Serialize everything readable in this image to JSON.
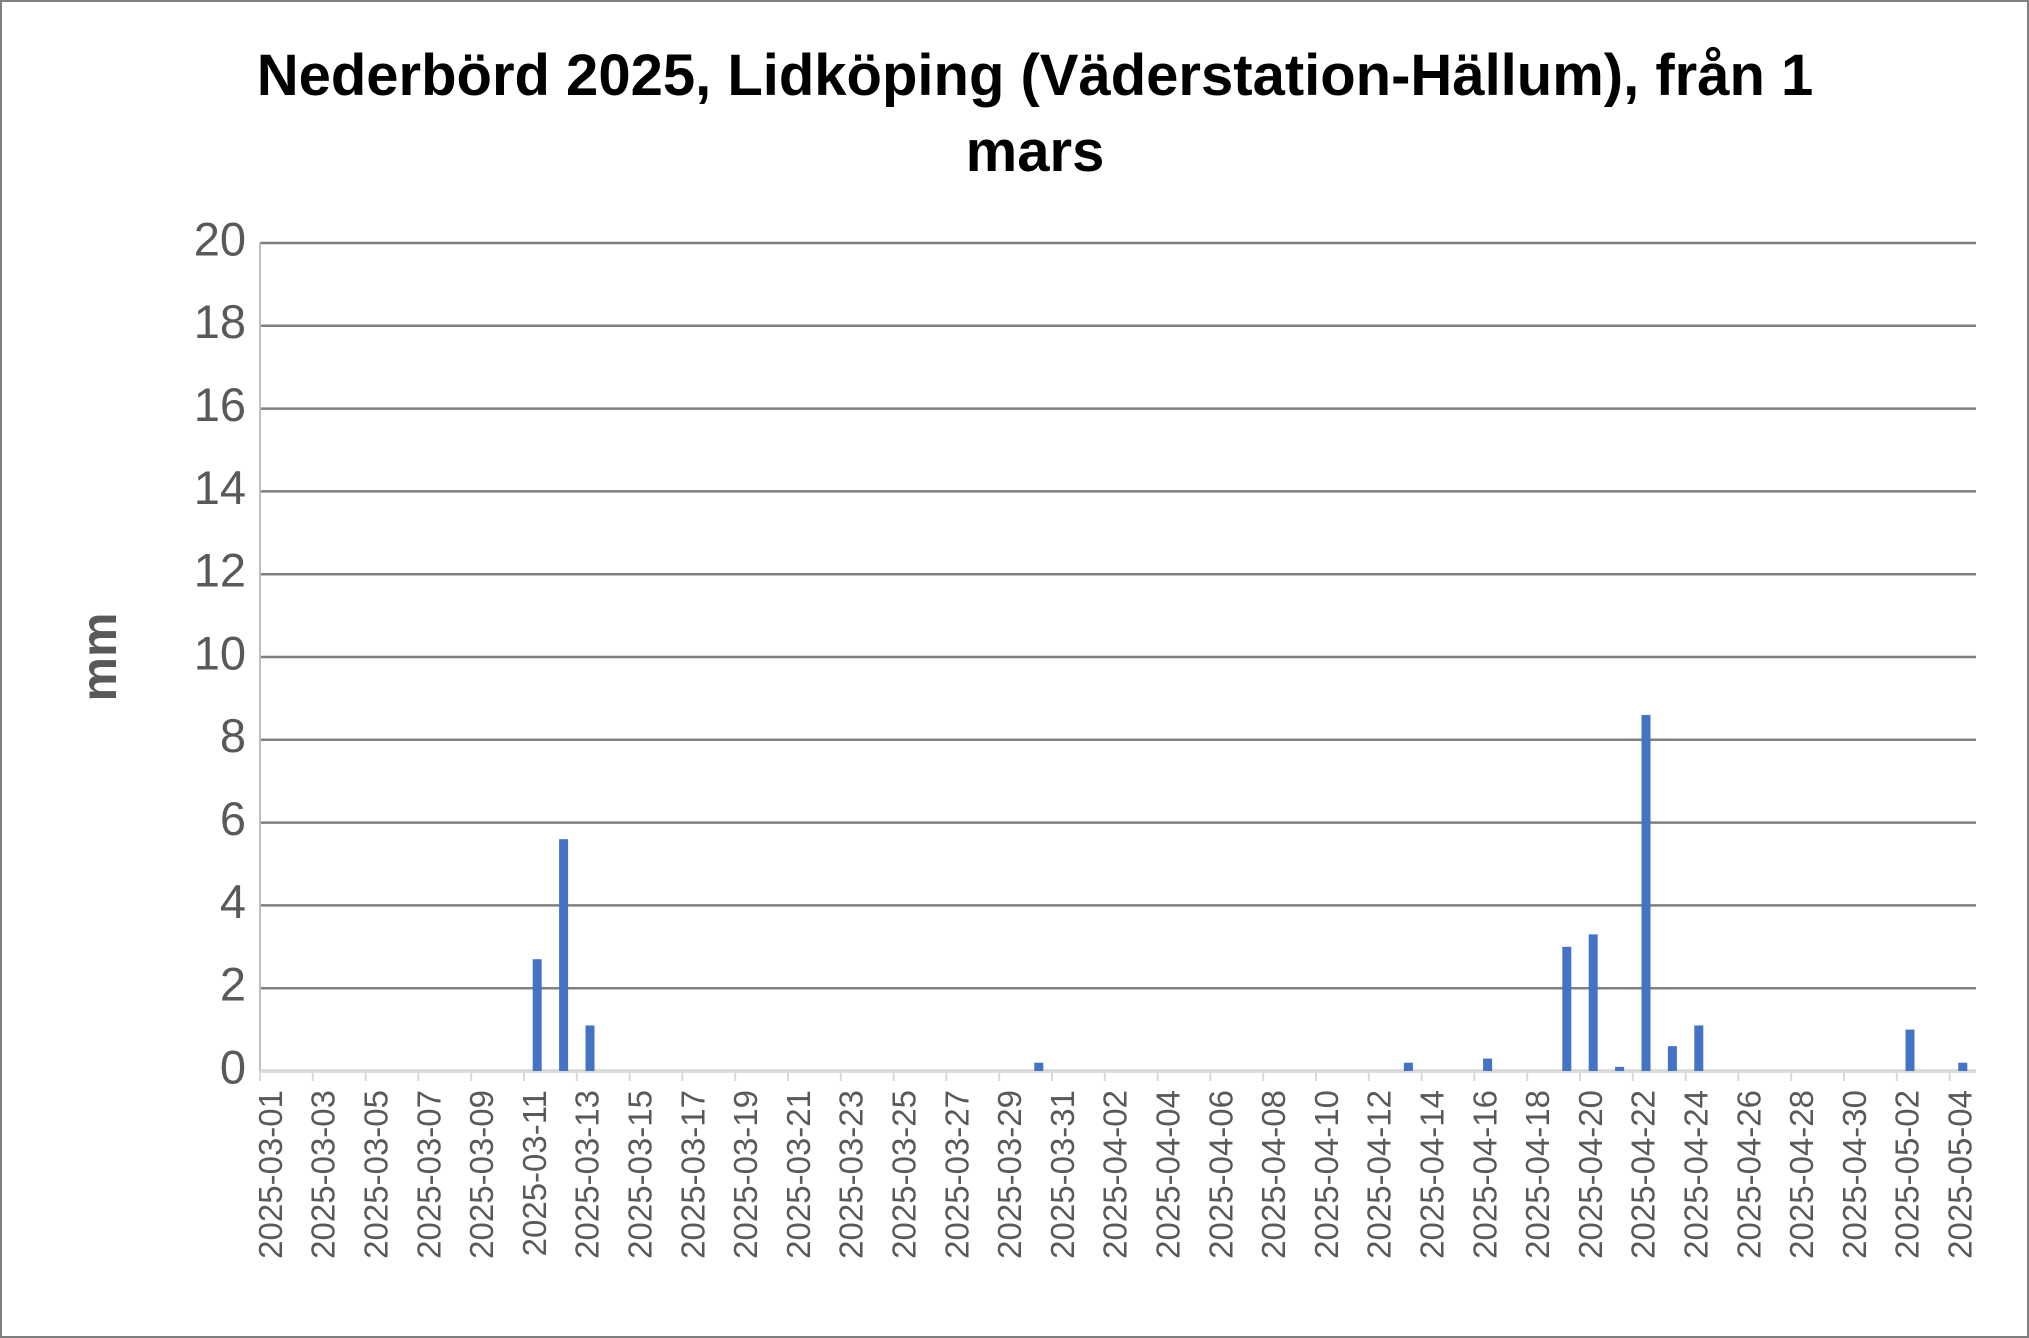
{
  "chart_data": {
    "type": "bar",
    "title": "Nederbörd 2025, Lidköping (Väderstation-Hällum), från 1 mars",
    "y_label": "mm",
    "categories": [
      "2025-03-01",
      null,
      "2025-03-03",
      null,
      "2025-03-05",
      null,
      "2025-03-07",
      null,
      "2025-03-09",
      null,
      "2025-03-11",
      null,
      "2025-03-13",
      null,
      "2025-03-15",
      null,
      "2025-03-17",
      null,
      "2025-03-19",
      null,
      "2025-03-21",
      null,
      "2025-03-23",
      null,
      "2025-03-25",
      null,
      "2025-03-27",
      null,
      "2025-03-29",
      null,
      "2025-03-31",
      null,
      "2025-04-02",
      null,
      "2025-04-04",
      null,
      "2025-04-06",
      null,
      "2025-04-08",
      null,
      "2025-04-10",
      null,
      "2025-04-12",
      null,
      "2025-04-14",
      null,
      "2025-04-16",
      null,
      "2025-04-18",
      null,
      "2025-04-20",
      null,
      "2025-04-22",
      null,
      "2025-04-24",
      null,
      "2025-04-26",
      null,
      "2025-04-28",
      null,
      "2025-04-30",
      null,
      "2025-05-02",
      null,
      "2025-05-04"
    ],
    "values": [
      0,
      0,
      0,
      0,
      0,
      0,
      0,
      0,
      0,
      0,
      2.7,
      5.6,
      1.1,
      0,
      0,
      0,
      0,
      0,
      0,
      0,
      0,
      0,
      0,
      0,
      0,
      0,
      0,
      0,
      0,
      0.2,
      0,
      0,
      0,
      0,
      0,
      0,
      0,
      0,
      0,
      0,
      0,
      0,
      0,
      0.2,
      0,
      0,
      0.3,
      0,
      0,
      3.0,
      3.3,
      0.1,
      8.6,
      0.6,
      1.1,
      0,
      0,
      0,
      0,
      0,
      0,
      0,
      1.0,
      0,
      0.2
    ],
    "color": "#4472c4",
    "ylim": [
      0,
      20
    ],
    "yticks": [
      0,
      2,
      4,
      6,
      8,
      10,
      12,
      14,
      16,
      18,
      20
    ],
    "grid": true
  }
}
